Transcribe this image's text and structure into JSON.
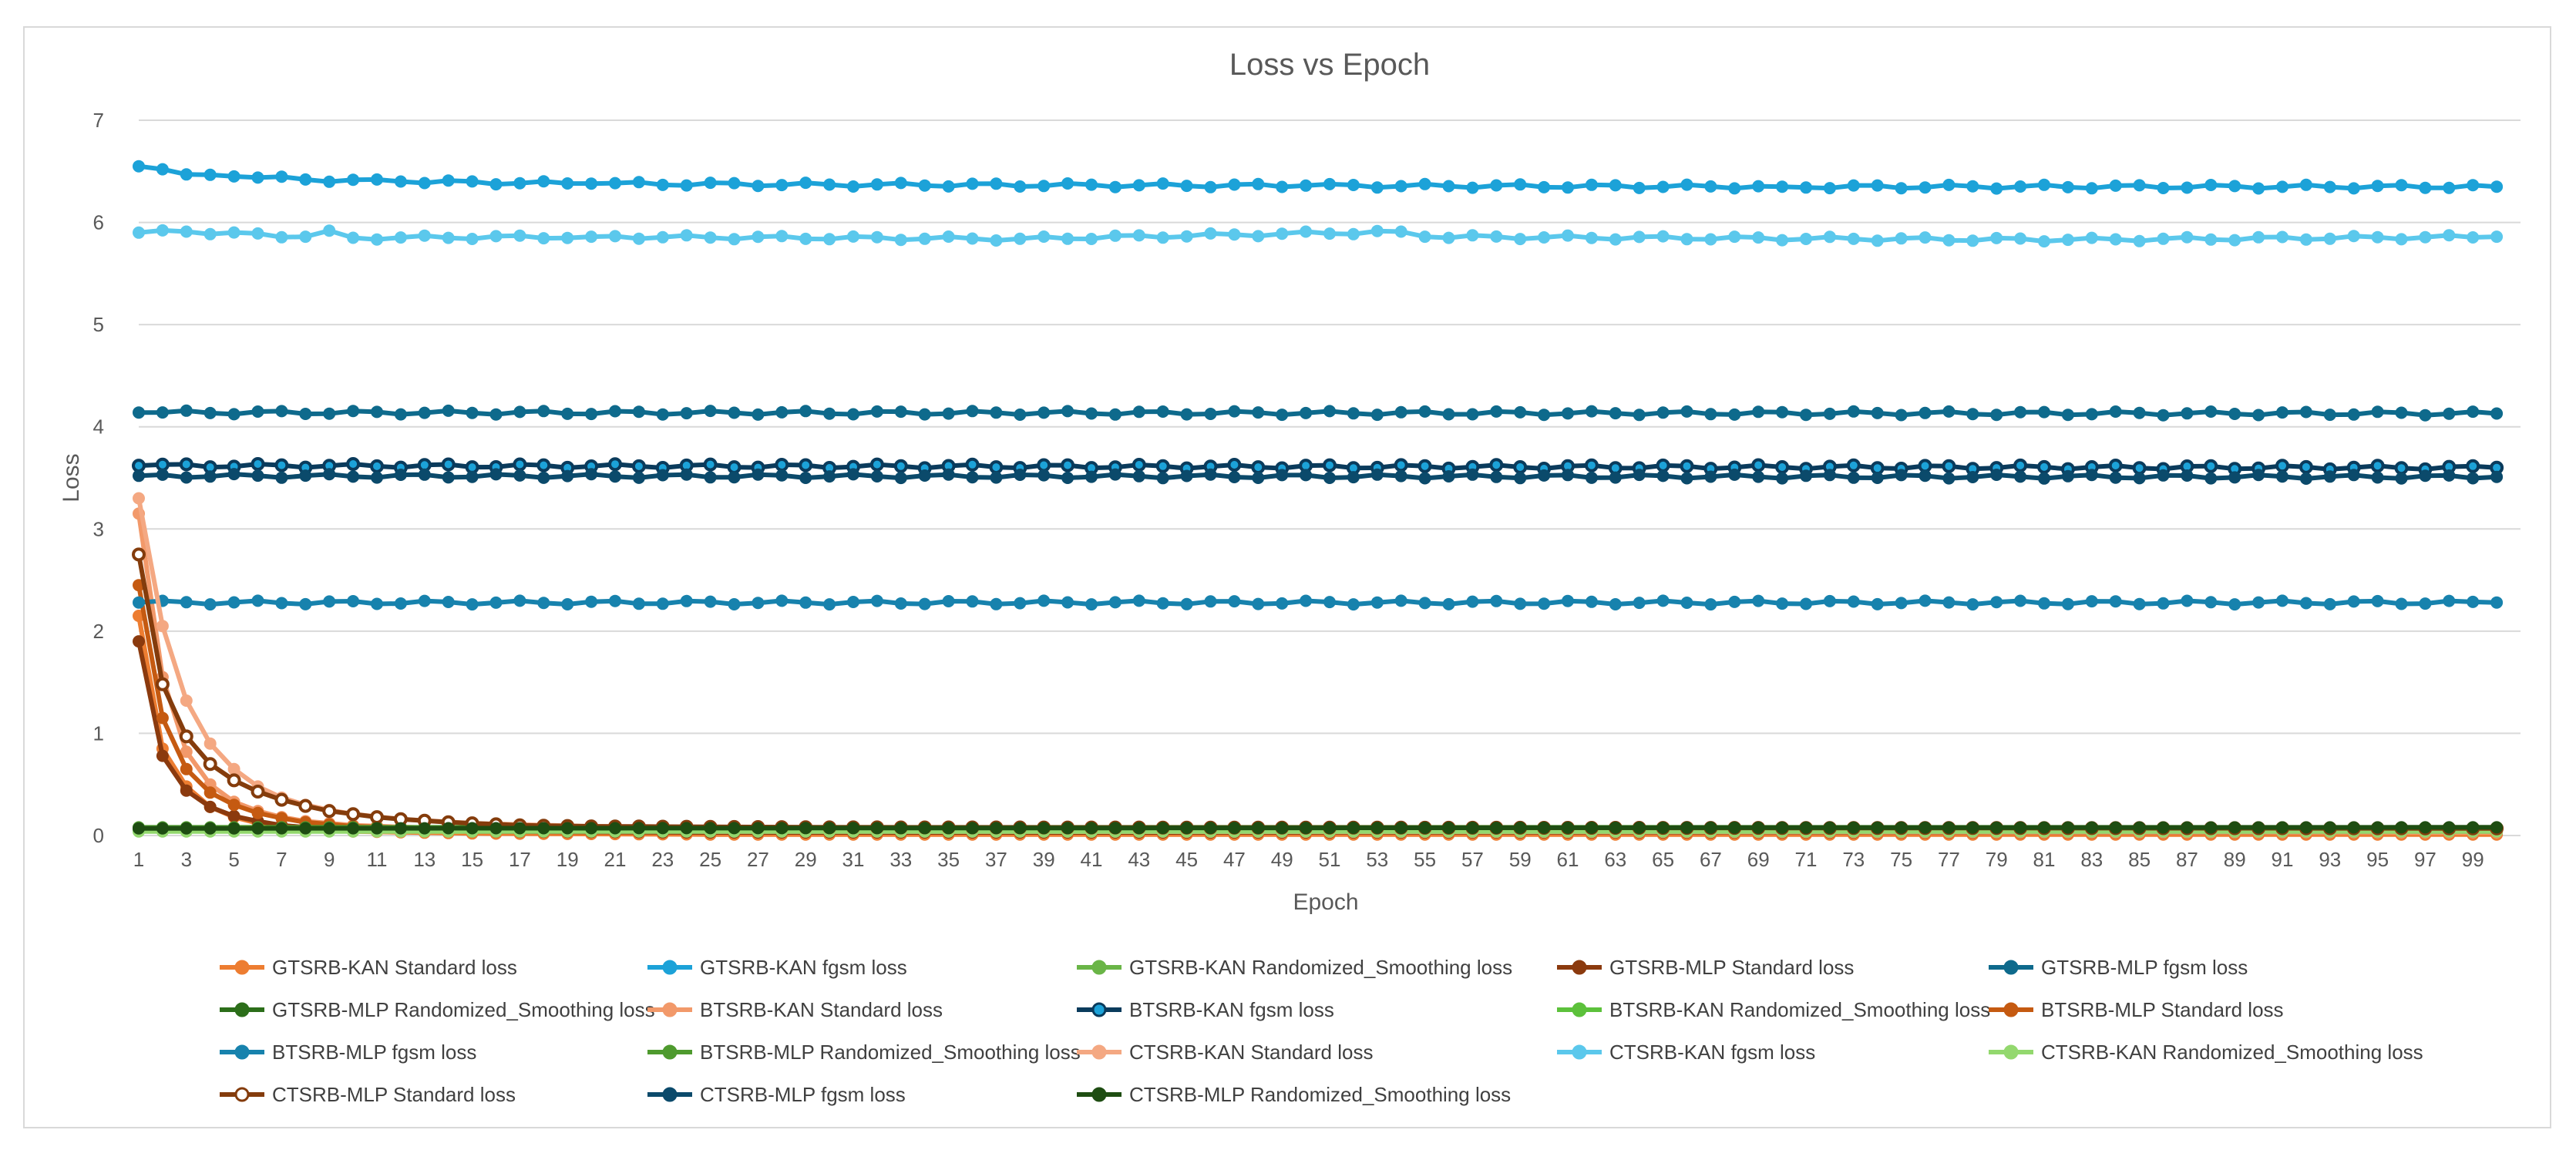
{
  "chart_data": {
    "type": "line",
    "title": "Loss vs Epoch",
    "xlabel": "Epoch",
    "ylabel": "Loss",
    "ylim": [
      0,
      7
    ],
    "yticks": [
      "0",
      "1",
      "2",
      "3",
      "4",
      "5",
      "6",
      "7"
    ],
    "xlim": [
      1,
      100
    ],
    "xtick_labels": [
      "1",
      "3",
      "5",
      "7",
      "9",
      "11",
      "13",
      "15",
      "17",
      "19",
      "21",
      "23",
      "25",
      "27",
      "29",
      "31",
      "33",
      "35",
      "37",
      "39",
      "41",
      "43",
      "45",
      "47",
      "49",
      "51",
      "53",
      "55",
      "57",
      "59",
      "61",
      "63",
      "65",
      "67",
      "69",
      "71",
      "73",
      "75",
      "77",
      "79",
      "81",
      "83",
      "85",
      "87",
      "89",
      "91",
      "93",
      "95",
      "97",
      "99"
    ],
    "grid": "horizontal",
    "legend_position": "bottom",
    "series": [
      {
        "name": "GTSRB-KAN Standard loss",
        "color": "#ED7D31",
        "marker": "filled",
        "points": [
          [
            1,
            2.15
          ],
          [
            2,
            0.85
          ],
          [
            3,
            0.48
          ],
          [
            4,
            0.28
          ],
          [
            5,
            0.18
          ],
          [
            6,
            0.12
          ],
          [
            7,
            0.09
          ],
          [
            8,
            0.07
          ],
          [
            9,
            0.05
          ],
          [
            10,
            0.04
          ],
          [
            15,
            0.02
          ],
          [
            25,
            0.01
          ],
          [
            100,
            0.01
          ]
        ]
      },
      {
        "name": "GTSRB-KAN fgsm loss",
        "color": "#1CA2D8",
        "marker": "filled",
        "points": [
          [
            1,
            6.55
          ],
          [
            2,
            6.52
          ],
          [
            3,
            6.47
          ],
          [
            5,
            6.45
          ],
          [
            8,
            6.42
          ],
          [
            12,
            6.4
          ],
          [
            20,
            6.38
          ],
          [
            30,
            6.37
          ],
          [
            50,
            6.36
          ],
          [
            70,
            6.35
          ],
          [
            100,
            6.35
          ]
        ]
      },
      {
        "name": "GTSRB-KAN Randomized_Smoothing loss",
        "color": "#6AB547",
        "marker": "filled",
        "points": [
          [
            1,
            0.07
          ],
          [
            100,
            0.07
          ]
        ]
      },
      {
        "name": "GTSRB-MLP Standard loss",
        "color": "#8B3A0E",
        "marker": "filled",
        "points": [
          [
            1,
            1.9
          ],
          [
            2,
            0.78
          ],
          [
            3,
            0.44
          ],
          [
            4,
            0.28
          ],
          [
            5,
            0.19
          ],
          [
            6,
            0.14
          ],
          [
            7,
            0.1
          ],
          [
            8,
            0.08
          ],
          [
            10,
            0.06
          ],
          [
            15,
            0.04
          ],
          [
            25,
            0.03
          ],
          [
            100,
            0.03
          ]
        ]
      },
      {
        "name": "GTSRB-MLP fgsm loss",
        "color": "#0E6A8C",
        "marker": "filled",
        "points": [
          [
            1,
            4.14
          ],
          [
            100,
            4.13
          ]
        ]
      },
      {
        "name": "GTSRB-MLP Randomized_Smoothing loss",
        "color": "#2C6E1A",
        "marker": "filled",
        "points": [
          [
            1,
            0.06
          ],
          [
            100,
            0.06
          ]
        ]
      },
      {
        "name": "BTSRB-KAN Standard loss",
        "color": "#F2996A",
        "marker": "filled",
        "points": [
          [
            1,
            3.15
          ],
          [
            2,
            1.55
          ],
          [
            3,
            0.82
          ],
          [
            4,
            0.5
          ],
          [
            5,
            0.33
          ],
          [
            6,
            0.24
          ],
          [
            7,
            0.18
          ],
          [
            8,
            0.14
          ],
          [
            10,
            0.1
          ],
          [
            15,
            0.06
          ],
          [
            25,
            0.04
          ],
          [
            100,
            0.03
          ]
        ]
      },
      {
        "name": "BTSRB-KAN fgsm loss",
        "color": "#0A3B5C",
        "marker": "outlined-blue",
        "points": [
          [
            1,
            3.62
          ],
          [
            100,
            3.6
          ]
        ]
      },
      {
        "name": "BTSRB-KAN Randomized_Smoothing loss",
        "color": "#5CC13B",
        "marker": "filled",
        "points": [
          [
            1,
            0.05
          ],
          [
            100,
            0.05
          ]
        ]
      },
      {
        "name": "BTSRB-MLP Standard loss",
        "color": "#C55A11",
        "marker": "filled",
        "points": [
          [
            1,
            2.45
          ],
          [
            2,
            1.15
          ],
          [
            3,
            0.65
          ],
          [
            4,
            0.42
          ],
          [
            5,
            0.3
          ],
          [
            6,
            0.22
          ],
          [
            7,
            0.17
          ],
          [
            8,
            0.13
          ],
          [
            10,
            0.09
          ],
          [
            15,
            0.06
          ],
          [
            25,
            0.05
          ],
          [
            100,
            0.04
          ]
        ]
      },
      {
        "name": "BTSRB-MLP fgsm loss",
        "color": "#1782AD",
        "marker": "filled",
        "points": [
          [
            1,
            2.28
          ],
          [
            100,
            2.28
          ]
        ]
      },
      {
        "name": "BTSRB-MLP Randomized_Smoothing loss",
        "color": "#4E9A2E",
        "marker": "filled",
        "points": [
          [
            1,
            0.08
          ],
          [
            100,
            0.08
          ]
        ]
      },
      {
        "name": "CTSRB-KAN Standard loss",
        "color": "#F4A882",
        "marker": "filled",
        "points": [
          [
            1,
            3.3
          ],
          [
            2,
            2.05
          ],
          [
            3,
            1.32
          ],
          [
            4,
            0.9
          ],
          [
            5,
            0.65
          ],
          [
            6,
            0.48
          ],
          [
            7,
            0.37
          ],
          [
            8,
            0.3
          ],
          [
            9,
            0.25
          ],
          [
            10,
            0.21
          ],
          [
            12,
            0.16
          ],
          [
            15,
            0.12
          ],
          [
            20,
            0.09
          ],
          [
            30,
            0.07
          ],
          [
            100,
            0.05
          ]
        ]
      },
      {
        "name": "CTSRB-KAN fgsm loss",
        "color": "#5BC8EC",
        "marker": "filled",
        "points": [
          [
            1,
            5.9
          ],
          [
            3,
            5.91
          ],
          [
            8,
            5.86
          ],
          [
            9,
            5.92
          ],
          [
            10,
            5.85
          ],
          [
            20,
            5.86
          ],
          [
            38,
            5.84
          ],
          [
            54,
            5.91
          ],
          [
            55,
            5.86
          ],
          [
            82,
            5.83
          ],
          [
            100,
            5.86
          ]
        ]
      },
      {
        "name": "CTSRB-KAN Randomized_Smoothing loss",
        "color": "#93D86E",
        "marker": "filled",
        "points": [
          [
            1,
            0.04
          ],
          [
            100,
            0.04
          ]
        ]
      },
      {
        "name": "CTSRB-MLP Standard loss",
        "color": "#843C0C",
        "marker": "outlined-white",
        "points": [
          [
            1,
            2.75
          ],
          [
            2,
            1.48
          ],
          [
            3,
            0.97
          ],
          [
            4,
            0.7
          ],
          [
            5,
            0.54
          ],
          [
            6,
            0.43
          ],
          [
            7,
            0.35
          ],
          [
            8,
            0.29
          ],
          [
            9,
            0.24
          ],
          [
            10,
            0.21
          ],
          [
            11,
            0.18
          ],
          [
            12,
            0.16
          ],
          [
            14,
            0.13
          ],
          [
            17,
            0.1
          ],
          [
            20,
            0.09
          ],
          [
            30,
            0.08
          ],
          [
            100,
            0.07
          ]
        ]
      },
      {
        "name": "CTSRB-MLP fgsm loss",
        "color": "#0B4A6B",
        "marker": "filled",
        "points": [
          [
            1,
            3.52
          ],
          [
            100,
            3.51
          ]
        ]
      },
      {
        "name": "CTSRB-MLP Randomized_Smoothing loss",
        "color": "#1E4D12",
        "marker": "filled",
        "points": [
          [
            1,
            0.07
          ],
          [
            100,
            0.08
          ]
        ]
      }
    ]
  }
}
